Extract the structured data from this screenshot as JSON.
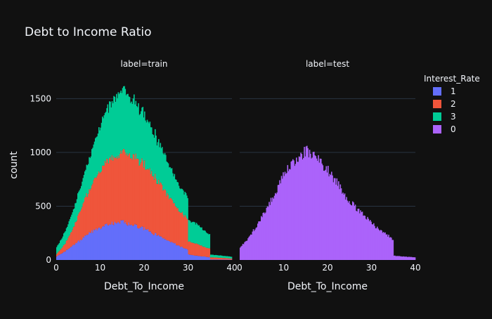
{
  "chart_data": {
    "type": "bar",
    "title": "Debt to Income Ratio",
    "xlabel": "Debt_To_Income",
    "ylabel": "count",
    "xlim": [
      0,
      40
    ],
    "ylim": [
      0,
      1620
    ],
    "grid": true,
    "legend": {
      "title": "Interest_Rate",
      "placement": "top-right"
    },
    "x_ticks": [
      0,
      10,
      20,
      30,
      40
    ],
    "y_ticks": [
      0,
      500,
      1000,
      1500
    ],
    "panels": [
      {
        "label": "label=train",
        "series": [
          {
            "name": "1",
            "color": "#636efa",
            "x": [
              0,
              2,
              4,
              6,
              8,
              10,
              12,
              14,
              15,
              16,
              18,
              20,
              22,
              24,
              26,
              28,
              29.9,
              30,
              32,
              34,
              34.9,
              35,
              38,
              40
            ],
            "y": [
              30,
              80,
              140,
              200,
              260,
              300,
              330,
              350,
              355,
              340,
              320,
              290,
              250,
              210,
              170,
              130,
              100,
              50,
              40,
              30,
              25,
              5,
              4,
              3
            ]
          },
          {
            "name": "2",
            "color": "#ef553b",
            "x": [
              0,
              2,
              4,
              6,
              8,
              10,
              12,
              14,
              15,
              16,
              18,
              20,
              22,
              24,
              26,
              28,
              29.9,
              30,
              32,
              34,
              34.9,
              35,
              38,
              40
            ],
            "y": [
              20,
              70,
              170,
              310,
              430,
              530,
              590,
              630,
              650,
              650,
              630,
              590,
              540,
              470,
              400,
              330,
              280,
              120,
              110,
              90,
              80,
              20,
              15,
              10
            ]
          },
          {
            "name": "3",
            "color": "#00cc96",
            "x": [
              0,
              2,
              4,
              6,
              8,
              10,
              12,
              14,
              15,
              16,
              18,
              20,
              22,
              24,
              26,
              28,
              29.9,
              30,
              32,
              34,
              34.9,
              35,
              38,
              40
            ],
            "y": [
              60,
              110,
              170,
              230,
              320,
              420,
              500,
              560,
              590,
              560,
              520,
              470,
              410,
              340,
              280,
              230,
              210,
              200,
              180,
              150,
              130,
              25,
              20,
              17
            ]
          }
        ]
      },
      {
        "label": "label=test",
        "series": [
          {
            "name": "0",
            "color": "#ab63fa",
            "x": [
              0,
              2,
              4,
              6,
              8,
              10,
              12,
              14,
              15,
              16,
              18,
              20,
              22,
              24,
              26,
              28,
              29.9,
              30,
              32,
              34,
              34.9,
              35,
              38,
              40
            ],
            "y": [
              110,
              200,
              330,
              470,
              620,
              780,
              900,
              980,
              1010,
              990,
              930,
              840,
              730,
              600,
              500,
              420,
              370,
              340,
              280,
              220,
              190,
              40,
              30,
              25
            ]
          }
        ]
      }
    ]
  }
}
